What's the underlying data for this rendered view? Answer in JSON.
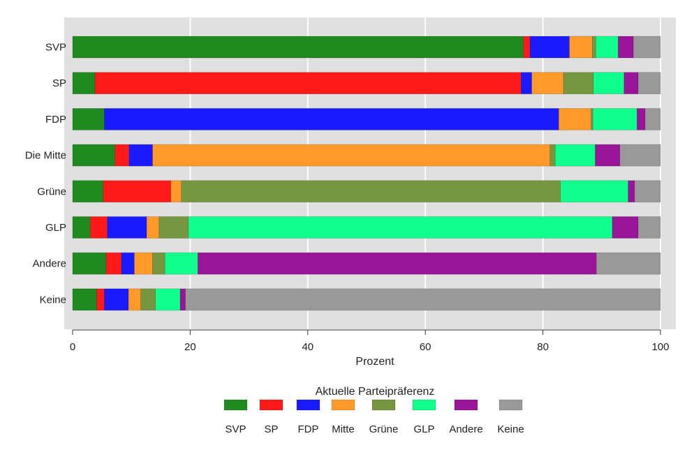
{
  "chart_data": {
    "type": "bar",
    "orientation": "horizontal",
    "stacked": true,
    "title": "",
    "xlabel": "Prozent",
    "ylabel": "",
    "xlim": [
      0,
      100
    ],
    "xticks": [
      0,
      20,
      40,
      60,
      80,
      100
    ],
    "grid": true,
    "categories": [
      "SVP",
      "SP",
      "FDP",
      "Die Mitte",
      "Grüne",
      "GLP",
      "Andere",
      "Keine"
    ],
    "legend": {
      "title": "Aktuelle Parteipräferenz",
      "placement": "bottom"
    },
    "series": [
      {
        "name": "SVP",
        "color": "#1f8a1f",
        "values": [
          76.7,
          3.8,
          5.4,
          7.2,
          5.2,
          3.0,
          5.7,
          4.1
        ]
      },
      {
        "name": "SP",
        "color": "#ff1a1a",
        "values": [
          1.1,
          72.5,
          0.0,
          2.4,
          11.5,
          2.9,
          2.6,
          1.3
        ]
      },
      {
        "name": "FDP",
        "color": "#1a1aff",
        "values": [
          6.7,
          1.8,
          77.3,
          4.0,
          0.0,
          6.7,
          2.2,
          4.1
        ]
      },
      {
        "name": "Mitte",
        "color": "#ff9a2a",
        "values": [
          3.9,
          5.4,
          5.5,
          67.6,
          1.8,
          2.1,
          3.1,
          2.1
        ]
      },
      {
        "name": "Grüne",
        "color": "#76963f",
        "values": [
          0.6,
          5.1,
          0.3,
          0.9,
          64.5,
          5.0,
          2.1,
          2.5
        ]
      },
      {
        "name": "GLP",
        "color": "#10ff8c",
        "values": [
          3.8,
          5.2,
          7.5,
          6.8,
          11.5,
          72.1,
          5.6,
          4.2
        ]
      },
      {
        "name": "Andere",
        "color": "#9a149a",
        "values": [
          2.6,
          2.4,
          1.4,
          4.2,
          1.1,
          4.4,
          67.8,
          0.9
        ]
      },
      {
        "name": "Keine",
        "color": "#999999",
        "values": [
          4.6,
          3.8,
          2.6,
          6.9,
          4.4,
          3.8,
          10.9,
          80.8
        ]
      }
    ]
  }
}
